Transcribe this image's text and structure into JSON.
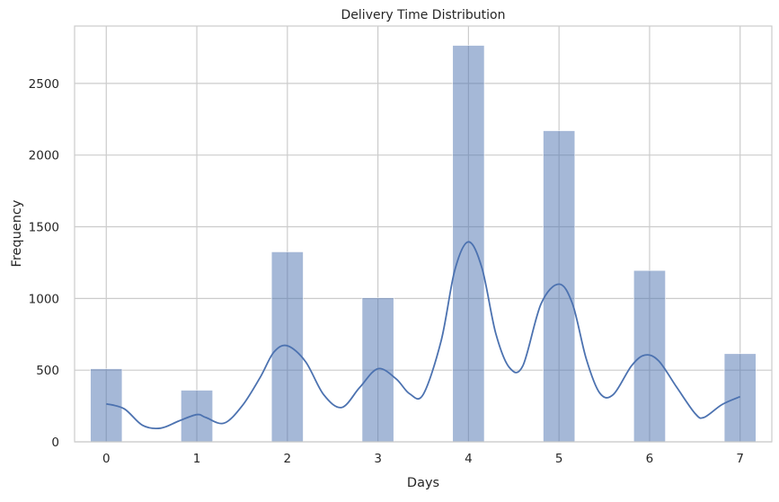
{
  "chart_data": {
    "type": "bar",
    "title": "Delivery Time Distribution",
    "xlabel": "Days",
    "ylabel": "Frequency",
    "xlim": [
      -0.35,
      7.35
    ],
    "ylim": [
      0,
      2900
    ],
    "grid": true,
    "xticks": [
      "0",
      "1",
      "2",
      "3",
      "4",
      "5",
      "6",
      "7"
    ],
    "yticks": [
      "0",
      "500",
      "1000",
      "1500",
      "2000",
      "2500"
    ],
    "bins": [
      {
        "x": 0,
        "value": 510
      },
      {
        "x": 1,
        "value": 360
      },
      {
        "x": 2,
        "value": 1325
      },
      {
        "x": 3,
        "value": 1005
      },
      {
        "x": 4,
        "value": 2765
      },
      {
        "x": 5,
        "value": 2170
      },
      {
        "x": 6,
        "value": 1195
      },
      {
        "x": 7,
        "value": 615
      }
    ],
    "kde": [
      [
        0,
        265
      ],
      [
        0.2,
        230
      ],
      [
        0.4,
        115
      ],
      [
        0.6,
        95
      ],
      [
        0.8,
        145
      ],
      [
        1.0,
        190
      ],
      [
        1.1,
        170
      ],
      [
        1.3,
        130
      ],
      [
        1.5,
        250
      ],
      [
        1.7,
        450
      ],
      [
        1.85,
        625
      ],
      [
        2.0,
        670
      ],
      [
        2.2,
        560
      ],
      [
        2.4,
        330
      ],
      [
        2.6,
        240
      ],
      [
        2.8,
        380
      ],
      [
        3.0,
        510
      ],
      [
        3.2,
        440
      ],
      [
        3.35,
        335
      ],
      [
        3.5,
        330
      ],
      [
        3.7,
        710
      ],
      [
        3.85,
        1200
      ],
      [
        4.0,
        1395
      ],
      [
        4.15,
        1210
      ],
      [
        4.3,
        760
      ],
      [
        4.45,
        520
      ],
      [
        4.6,
        530
      ],
      [
        4.8,
        960
      ],
      [
        5.0,
        1100
      ],
      [
        5.15,
        960
      ],
      [
        5.3,
        580
      ],
      [
        5.45,
        340
      ],
      [
        5.6,
        330
      ],
      [
        5.8,
        530
      ],
      [
        5.95,
        605
      ],
      [
        6.1,
        565
      ],
      [
        6.3,
        380
      ],
      [
        6.5,
        200
      ],
      [
        6.6,
        170
      ],
      [
        6.8,
        260
      ],
      [
        7.0,
        315
      ]
    ],
    "colors": {
      "bar": "#4c72b0",
      "line": "#4c72b0",
      "grid": "#cccccc",
      "text": "#262626"
    }
  }
}
